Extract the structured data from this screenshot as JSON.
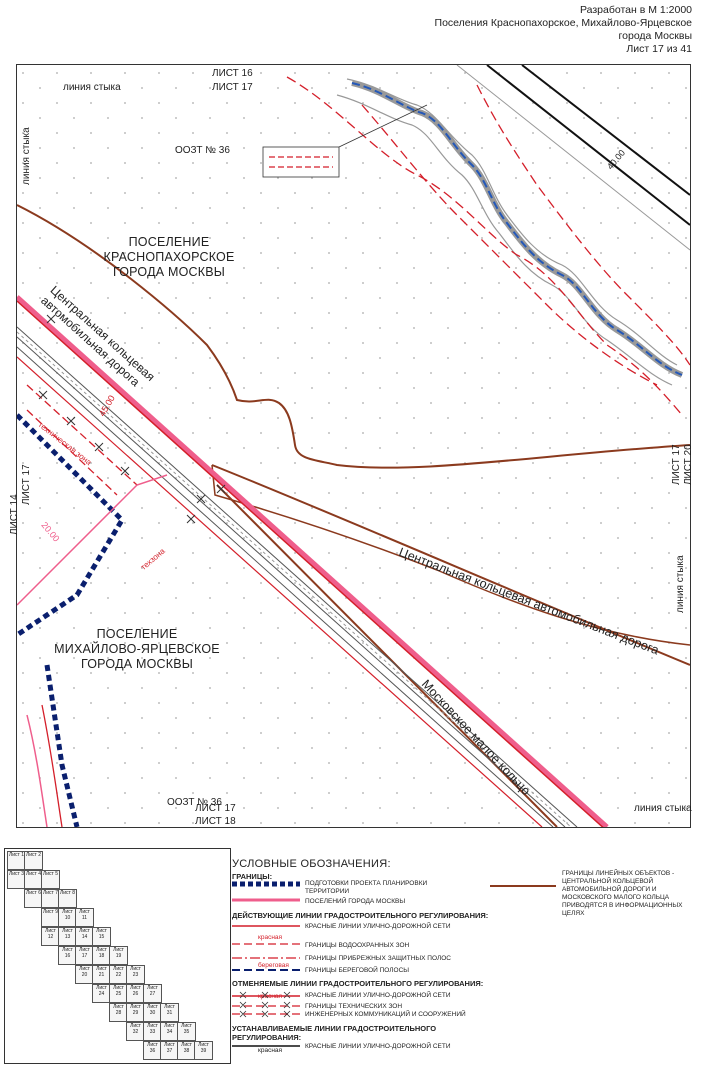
{
  "header": {
    "line1": "Разработан в М 1:2000",
    "line2": "Поселения Краснопахорское, Михайлово-Ярцевское",
    "line3": "города Москвы",
    "line4": "Лист 17 из 41"
  },
  "map": {
    "sheet_top_a": "ЛИСТ 16",
    "sheet_top_b": "ЛИСТ 17",
    "sheet_bottom_a": "ЛИСТ 17",
    "sheet_bottom_b": "ЛИСТ 18",
    "sheet_left_a": "ЛИСТ 14",
    "sheet_left_b": "ЛИСТ 17",
    "sheet_right_a": "ЛИСТ 17",
    "sheet_right_b": "ЛИСТ 20",
    "joint_top": "линия стыка",
    "joint_left": "линия стыка",
    "joint_right": "линия стыка",
    "joint_bottom": "линия стыка",
    "oozt_top": "ООЗТ № 36",
    "oozt_bottom": "ООЗТ № 36",
    "settlement_1": [
      "ПОСЕЛЕНИЕ",
      "КРАСНОПАХОРСКОЕ",
      "ГОРОДА МОСКВЫ"
    ],
    "settlement_2": [
      "ПОСЕЛЕНИЕ",
      "МИХАЙЛОВО-ЯРЦЕВСКОЕ",
      "ГОРОДА МОСКВЫ"
    ],
    "road_ckad_diag": [
      "Центральная кольцевая",
      "автомобильная дорога"
    ],
    "road_ckad_long": "Центральная кольцевая автомобильная дорога",
    "road_mmk": "Московское малое кольцо",
    "tech_zone": "техническая зона",
    "tech_zone_short": "техзона",
    "dim_top": "40.00",
    "dim_mid": "45.00",
    "dim_left": "20.00"
  },
  "legend": {
    "title": "УСЛОВНЫЕ ОБОЗНАЧЕНИЯ:",
    "borders": "ГРАНИЦЫ:",
    "b1": [
      "ПОДГОТОВКИ ПРОЕКТА ПЛАНИРОВКИ",
      "ТЕРРИТОРИИ"
    ],
    "b2": "ПОСЕЛЕНИЙ ГОРОДА МОСКВЫ",
    "active": "ДЕЙСТВУЮЩИЕ ЛИНИИ ГРАДОСТРОИТЕЛЬНОГО РЕГУЛИРОВАНИЯ:",
    "a1": "КРАСНЫЕ ЛИНИИ УЛИЧНО-ДОРОЖНОЙ СЕТИ",
    "a1_tag": "красная",
    "a2": "ГРАНИЦЫ ВОДООХРАННЫХ ЗОН",
    "a3": "ГРАНИЦЫ ПРИБРЕЖНЫХ ЗАЩИТНЫХ ПОЛОС",
    "a3_tag": "береговая",
    "a4": "ГРАНИЦЫ БЕРЕГОВОЙ ПОЛОСЫ",
    "cancel": "ОТМЕНЯЕМЫЕ ЛИНИИ ГРАДОСТРОИТЕЛЬНОГО РЕГУЛИРОВАНИЯ:",
    "c1": "КРАСНЫЕ ЛИНИИ УЛИЧНО-ДОРОЖНОЙ СЕТИ",
    "c1_tag": "красная",
    "c2": [
      "ГРАНИЦЫ ТЕХНИЧЕСКИХ ЗОН",
      "ИНЖЕНЕРНЫХ КОММУНИКАЦИЙ И СООРУЖЕНИЙ"
    ],
    "set": [
      "УСТАНАВЛИВАЕМЫЕ ЛИНИИ ГРАДОСТРОИТЕЛЬНОГО",
      "РЕГУЛИРОВАНИЯ:"
    ],
    "s1": "КРАСНЫЕ ЛИНИИ УЛИЧНО-ДОРОЖНОЙ СЕТИ",
    "s1_tag": "красная",
    "right": [
      "ГРАНИЦЫ ЛИНЕЙНЫХ ОБЪЕКТОВ -",
      "ЦЕНТРАЛЬНОЙ КОЛЬЦЕВОЙ",
      "АВТОМОБИЛЬНОЙ ДОРОГИ И",
      "МОСКОВСКОГО МАЛОГО КОЛЬЦА",
      "ПРИВОДЯТСЯ В ИНФОРМАЦИОННЫХ ЦЕЛЯХ"
    ],
    "index": [
      "Лист 1",
      "Лист 2",
      "Лист 3",
      "Лист 4",
      "Лист 5",
      "Лист 6",
      "Лист 7",
      "Лист 8",
      "Лист 9",
      "Лист 10",
      "Лист 11",
      "Лист 12",
      "Лист 13",
      "Лист 14",
      "Лист 15",
      "Лист 16",
      "Лист 17",
      "Лист 18",
      "Лист 19",
      "Лист 20",
      "Лист 21",
      "Лист 22",
      "Лист 23",
      "Лист 24",
      "Лист 25",
      "Лист 26",
      "Лист 27",
      "Лист 28",
      "Лист 29",
      "Лист 30",
      "Лист 31",
      "Лист 32",
      "Лист 33",
      "Лист 34",
      "Лист 35",
      "Лист 36",
      "Лист 37",
      "Лист 38",
      "Лист 39",
      "Лист 40",
      "Лист 41"
    ]
  },
  "colors": {
    "ckad_brown": "#8b3a1e",
    "red": "#d41f2a",
    "pink": "#ef5e8c",
    "navy": "#0a1f6e",
    "blue": "#2458b8"
  }
}
